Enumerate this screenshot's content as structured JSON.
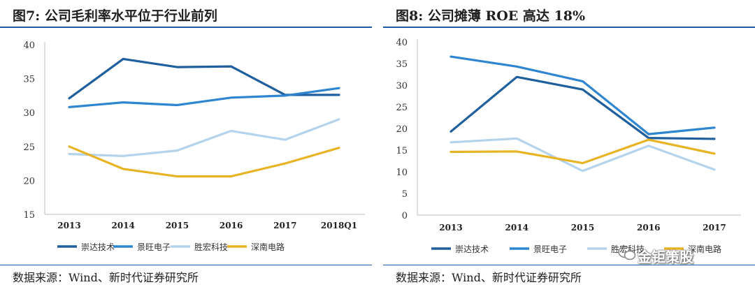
{
  "watermark": "金钜策股",
  "chart_data": [
    {
      "type": "line",
      "title": "图7:   公司毛利率水平位于行业前列",
      "source": "数据来源：Wind、新时代证券研究所",
      "categories": [
        "2013",
        "2014",
        "2015",
        "2016",
        "2017",
        "2018Q1"
      ],
      "ylim": [
        15,
        40
      ],
      "yticks": [
        15,
        20,
        25,
        30,
        35,
        40
      ],
      "grid": false,
      "legend": "bottom",
      "series": [
        {
          "name": "崇达技术",
          "color": "#1f5f9e",
          "values": [
            32.1,
            37.9,
            36.7,
            36.8,
            32.6,
            32.6
          ]
        },
        {
          "name": "景旺电子",
          "color": "#2e86d1",
          "values": [
            30.8,
            31.5,
            31.1,
            32.2,
            32.5,
            33.6
          ]
        },
        {
          "name": "胜宏科技",
          "color": "#b3d4ec",
          "values": [
            23.9,
            23.6,
            24.4,
            27.3,
            26.0,
            29.0
          ]
        },
        {
          "name": "深南电路",
          "color": "#e6b425",
          "values": [
            25.0,
            21.7,
            20.6,
            20.6,
            22.5,
            24.8
          ]
        }
      ]
    },
    {
      "type": "line",
      "title": "图8:   公司摊薄 ROE 高达 18%",
      "source": "数据来源：Wind、新时代证券研究所",
      "categories": [
        "2013",
        "2014",
        "2015",
        "2016",
        "2017"
      ],
      "ylim": [
        0,
        40
      ],
      "yticks": [
        0,
        5,
        10,
        15,
        20,
        25,
        30,
        35,
        40
      ],
      "grid": false,
      "legend": "bottom",
      "series": [
        {
          "name": "崇达技术",
          "color": "#1f5f9e",
          "values": [
            19.3,
            31.9,
            29.0,
            17.8,
            17.6
          ]
        },
        {
          "name": "景旺电子",
          "color": "#2e86d1",
          "values": [
            36.6,
            34.3,
            30.9,
            18.7,
            20.2
          ]
        },
        {
          "name": "胜宏科技",
          "color": "#b3d4ec",
          "values": [
            16.8,
            17.7,
            10.2,
            16.0,
            10.5
          ]
        },
        {
          "name": "深南电路",
          "color": "#e6b425",
          "values": [
            14.6,
            14.7,
            12.0,
            17.4,
            14.2
          ]
        }
      ]
    }
  ]
}
